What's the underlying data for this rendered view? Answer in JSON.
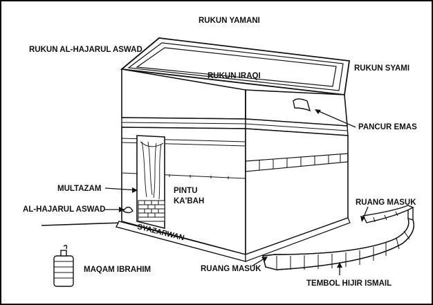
{
  "labels": {
    "rukun_yamani": "RUKUN YAMANI",
    "rukun_hajarul_aswad": "RUKUN AL-HAJARUL ASWAD",
    "rukun_iraqi": "RUKUN IRAQI",
    "rukun_syami": "RUKUN SYAMI",
    "pancur_emas": "PANCUR EMAS",
    "multazam": "MULTAZAM",
    "pintu_kabah_line1": "PINTU",
    "pintu_kabah_line2": "KA'BAH",
    "al_hajarul_aswad": "AL-HAJARUL ASWAD",
    "syazarwan": "SYAZARWAN",
    "ruang_masuk_right": "RUANG MASUK",
    "ruang_masuk_bottom": "RUANG MASUK",
    "maqam_ibrahim": "MAQAM IBRAHIM",
    "tembok_hijir_ismail": "TEMBOL HIJIR ISMAIL"
  },
  "colors": {
    "ink": "#111111",
    "paper": "#ffffff",
    "frame": "#000000"
  }
}
